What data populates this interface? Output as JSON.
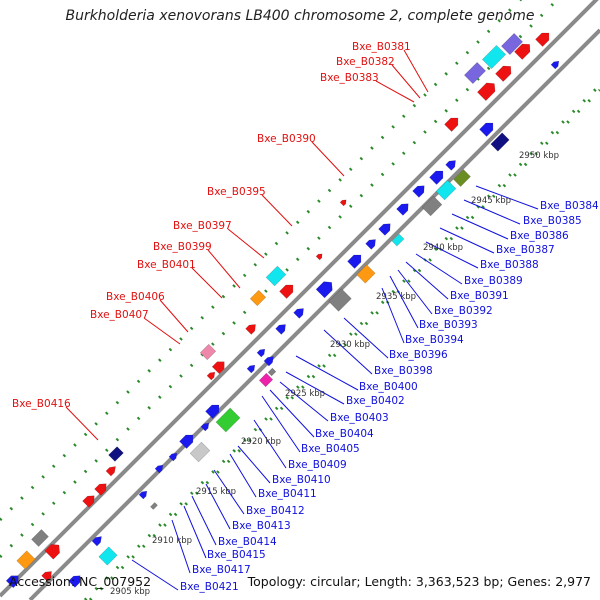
{
  "title": "Burkholderia xenovorans LB400 chromosome 2, complete genome",
  "accession": "Accession: NC_007952",
  "topology": "Topology: circular; Length: 3,363,523 bp; Genes: 2,977",
  "colors": {
    "backbone": "#8a8a8a",
    "dot_track": "#2a8a2a",
    "fwd_label": "#e01010",
    "rev_label": "#1010dd",
    "cds_red": "#ee1111",
    "cds_blue": "#1a1aee",
    "cds_navy": "#101080",
    "cds_cyan": "#11e6ee",
    "cds_orange": "#ff9911",
    "cds_gray": "#808080",
    "cds_light_gray": "#c8c8c8",
    "cds_purple": "#7766dd",
    "cds_olive": "#6b8e23",
    "cds_green": "#33cc33",
    "cds_pink": "#ee88aa",
    "cds_magenta": "#ee22aa"
  },
  "scale_ticks": [
    "2905 kbp",
    "2910 kbp",
    "2915 kbp",
    "2920 kbp",
    "2925 kbp",
    "2930 kbp",
    "2935 kbp",
    "2940 kbp",
    "2945 kbp",
    "2950 kbp"
  ],
  "forward_labels": [
    "Bxe_B0381",
    "Bxe_B0382",
    "Bxe_B0383",
    "Bxe_B0390",
    "Bxe_B0395",
    "Bxe_B0397",
    "Bxe_B0399",
    "Bxe_B0401",
    "Bxe_B0406",
    "Bxe_B0407",
    "Bxe_B0416"
  ],
  "reverse_labels": [
    "Bxe_B0384",
    "Bxe_B0385",
    "Bxe_B0386",
    "Bxe_B0387",
    "Bxe_B0388",
    "Bxe_B0389",
    "Bxe_B0391",
    "Bxe_B0392",
    "Bxe_B0393",
    "Bxe_B0394",
    "Bxe_B0396",
    "Bxe_B0398",
    "Bxe_B0400",
    "Bxe_B0402",
    "Bxe_B0403",
    "Bxe_B0404",
    "Bxe_B0405",
    "Bxe_B0409",
    "Bxe_B0410",
    "Bxe_B0411",
    "Bxe_B0412",
    "Bxe_B0413",
    "Bxe_B0414",
    "Bxe_B0415",
    "Bxe_B0417",
    "Bxe_B0421"
  ]
}
